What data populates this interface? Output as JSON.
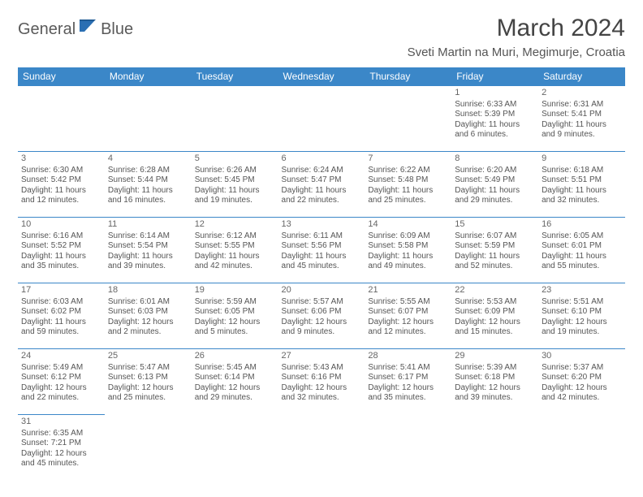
{
  "logo": {
    "general": "General",
    "blue": "Blue"
  },
  "title": "March 2024",
  "location": "Sveti Martin na Muri, Megimurje, Croatia",
  "accent_color": "#3b87c8",
  "weekdays": [
    "Sunday",
    "Monday",
    "Tuesday",
    "Wednesday",
    "Thursday",
    "Friday",
    "Saturday"
  ],
  "weeks": [
    [
      null,
      null,
      null,
      null,
      null,
      {
        "n": "1",
        "sr": "Sunrise: 6:33 AM",
        "ss": "Sunset: 5:39 PM",
        "dl": "Daylight: 11 hours and 6 minutes."
      },
      {
        "n": "2",
        "sr": "Sunrise: 6:31 AM",
        "ss": "Sunset: 5:41 PM",
        "dl": "Daylight: 11 hours and 9 minutes."
      }
    ],
    [
      {
        "n": "3",
        "sr": "Sunrise: 6:30 AM",
        "ss": "Sunset: 5:42 PM",
        "dl": "Daylight: 11 hours and 12 minutes."
      },
      {
        "n": "4",
        "sr": "Sunrise: 6:28 AM",
        "ss": "Sunset: 5:44 PM",
        "dl": "Daylight: 11 hours and 16 minutes."
      },
      {
        "n": "5",
        "sr": "Sunrise: 6:26 AM",
        "ss": "Sunset: 5:45 PM",
        "dl": "Daylight: 11 hours and 19 minutes."
      },
      {
        "n": "6",
        "sr": "Sunrise: 6:24 AM",
        "ss": "Sunset: 5:47 PM",
        "dl": "Daylight: 11 hours and 22 minutes."
      },
      {
        "n": "7",
        "sr": "Sunrise: 6:22 AM",
        "ss": "Sunset: 5:48 PM",
        "dl": "Daylight: 11 hours and 25 minutes."
      },
      {
        "n": "8",
        "sr": "Sunrise: 6:20 AM",
        "ss": "Sunset: 5:49 PM",
        "dl": "Daylight: 11 hours and 29 minutes."
      },
      {
        "n": "9",
        "sr": "Sunrise: 6:18 AM",
        "ss": "Sunset: 5:51 PM",
        "dl": "Daylight: 11 hours and 32 minutes."
      }
    ],
    [
      {
        "n": "10",
        "sr": "Sunrise: 6:16 AM",
        "ss": "Sunset: 5:52 PM",
        "dl": "Daylight: 11 hours and 35 minutes."
      },
      {
        "n": "11",
        "sr": "Sunrise: 6:14 AM",
        "ss": "Sunset: 5:54 PM",
        "dl": "Daylight: 11 hours and 39 minutes."
      },
      {
        "n": "12",
        "sr": "Sunrise: 6:12 AM",
        "ss": "Sunset: 5:55 PM",
        "dl": "Daylight: 11 hours and 42 minutes."
      },
      {
        "n": "13",
        "sr": "Sunrise: 6:11 AM",
        "ss": "Sunset: 5:56 PM",
        "dl": "Daylight: 11 hours and 45 minutes."
      },
      {
        "n": "14",
        "sr": "Sunrise: 6:09 AM",
        "ss": "Sunset: 5:58 PM",
        "dl": "Daylight: 11 hours and 49 minutes."
      },
      {
        "n": "15",
        "sr": "Sunrise: 6:07 AM",
        "ss": "Sunset: 5:59 PM",
        "dl": "Daylight: 11 hours and 52 minutes."
      },
      {
        "n": "16",
        "sr": "Sunrise: 6:05 AM",
        "ss": "Sunset: 6:01 PM",
        "dl": "Daylight: 11 hours and 55 minutes."
      }
    ],
    [
      {
        "n": "17",
        "sr": "Sunrise: 6:03 AM",
        "ss": "Sunset: 6:02 PM",
        "dl": "Daylight: 11 hours and 59 minutes."
      },
      {
        "n": "18",
        "sr": "Sunrise: 6:01 AM",
        "ss": "Sunset: 6:03 PM",
        "dl": "Daylight: 12 hours and 2 minutes."
      },
      {
        "n": "19",
        "sr": "Sunrise: 5:59 AM",
        "ss": "Sunset: 6:05 PM",
        "dl": "Daylight: 12 hours and 5 minutes."
      },
      {
        "n": "20",
        "sr": "Sunrise: 5:57 AM",
        "ss": "Sunset: 6:06 PM",
        "dl": "Daylight: 12 hours and 9 minutes."
      },
      {
        "n": "21",
        "sr": "Sunrise: 5:55 AM",
        "ss": "Sunset: 6:07 PM",
        "dl": "Daylight: 12 hours and 12 minutes."
      },
      {
        "n": "22",
        "sr": "Sunrise: 5:53 AM",
        "ss": "Sunset: 6:09 PM",
        "dl": "Daylight: 12 hours and 15 minutes."
      },
      {
        "n": "23",
        "sr": "Sunrise: 5:51 AM",
        "ss": "Sunset: 6:10 PM",
        "dl": "Daylight: 12 hours and 19 minutes."
      }
    ],
    [
      {
        "n": "24",
        "sr": "Sunrise: 5:49 AM",
        "ss": "Sunset: 6:12 PM",
        "dl": "Daylight: 12 hours and 22 minutes."
      },
      {
        "n": "25",
        "sr": "Sunrise: 5:47 AM",
        "ss": "Sunset: 6:13 PM",
        "dl": "Daylight: 12 hours and 25 minutes."
      },
      {
        "n": "26",
        "sr": "Sunrise: 5:45 AM",
        "ss": "Sunset: 6:14 PM",
        "dl": "Daylight: 12 hours and 29 minutes."
      },
      {
        "n": "27",
        "sr": "Sunrise: 5:43 AM",
        "ss": "Sunset: 6:16 PM",
        "dl": "Daylight: 12 hours and 32 minutes."
      },
      {
        "n": "28",
        "sr": "Sunrise: 5:41 AM",
        "ss": "Sunset: 6:17 PM",
        "dl": "Daylight: 12 hours and 35 minutes."
      },
      {
        "n": "29",
        "sr": "Sunrise: 5:39 AM",
        "ss": "Sunset: 6:18 PM",
        "dl": "Daylight: 12 hours and 39 minutes."
      },
      {
        "n": "30",
        "sr": "Sunrise: 5:37 AM",
        "ss": "Sunset: 6:20 PM",
        "dl": "Daylight: 12 hours and 42 minutes."
      }
    ],
    [
      {
        "n": "31",
        "sr": "Sunrise: 6:35 AM",
        "ss": "Sunset: 7:21 PM",
        "dl": "Daylight: 12 hours and 45 minutes."
      },
      null,
      null,
      null,
      null,
      null,
      null
    ]
  ]
}
